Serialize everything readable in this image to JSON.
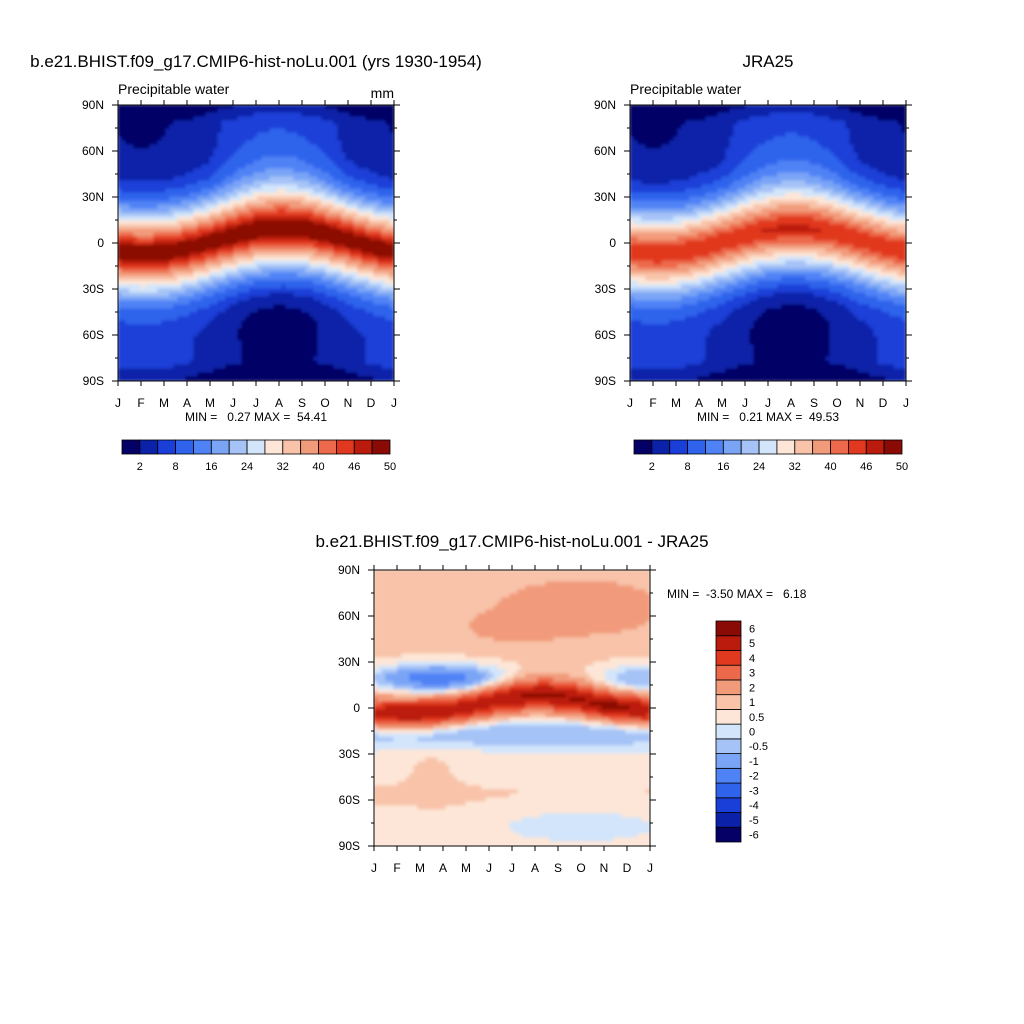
{
  "panels": [
    {
      "title": "b.e21.BHIST.f09_g17.CMIP6-hist-noLu.001 (yrs 1930-1954)",
      "left_label": "Precipitable water",
      "right_label": "mm",
      "stats": "MIN =   0.27 MAX =  54.41"
    },
    {
      "title": "JRA25",
      "left_label": "Precipitable water",
      "right_label": "",
      "stats": "MIN =   0.21 MAX =  49.53"
    },
    {
      "title": "b.e21.BHIST.f09_g17.CMIP6-hist-noLu.001 - JRA25",
      "left_label": "",
      "right_label": "",
      "stats": "MIN =  -3.50 MAX =   6.18"
    }
  ],
  "chart_data": [
    {
      "type": "heatmap",
      "title": "b.e21.BHIST.f09_g17.CMIP6-hist-noLu.001 (yrs 1930-1954)",
      "subtitle": "Precipitable water",
      "units": "mm",
      "x_tick_labels": [
        "J",
        "F",
        "M",
        "A",
        "M",
        "J",
        "J",
        "A",
        "S",
        "O",
        "N",
        "D",
        "J"
      ],
      "y_tick_labels": [
        "90S",
        "60S",
        "30S",
        "0",
        "30N",
        "60N",
        "90N"
      ],
      "y_ticks": [
        -90,
        -60,
        -30,
        0,
        30,
        60,
        90
      ],
      "xlim": [
        0,
        12
      ],
      "ylim": [
        -90,
        90
      ],
      "colorbar_levels": [
        2,
        5,
        8,
        12,
        16,
        20,
        24,
        28,
        32,
        36,
        40,
        43,
        46,
        48,
        50
      ],
      "colorbar_labels": [
        "2",
        "8",
        "16",
        "24",
        "32",
        "40",
        "46",
        "50"
      ],
      "colorbar_colors": [
        "#040066",
        "#0a21a8",
        "#1a3fd8",
        "#2f63ec",
        "#4f82f5",
        "#7aa4f6",
        "#a6c3f7",
        "#d2e5fb",
        "#fde6d7",
        "#f8c3a9",
        "#f29b7b",
        "#ec6a4b",
        "#e1391f",
        "#bb1b0d",
        "#8a0a05"
      ],
      "min": 0.27,
      "max": 54.41
    },
    {
      "type": "heatmap",
      "title": "JRA25",
      "subtitle": "Precipitable water",
      "x_tick_labels": [
        "J",
        "F",
        "M",
        "A",
        "M",
        "J",
        "J",
        "A",
        "S",
        "O",
        "N",
        "D",
        "J"
      ],
      "y_tick_labels": [
        "90S",
        "60S",
        "30S",
        "0",
        "30N",
        "60N",
        "90N"
      ],
      "y_ticks": [
        -90,
        -60,
        -30,
        0,
        30,
        60,
        90
      ],
      "xlim": [
        0,
        12
      ],
      "ylim": [
        -90,
        90
      ],
      "colorbar_levels": [
        2,
        5,
        8,
        12,
        16,
        20,
        24,
        28,
        32,
        36,
        40,
        43,
        46,
        48,
        50
      ],
      "colorbar_labels": [
        "2",
        "8",
        "16",
        "24",
        "32",
        "40",
        "46",
        "50"
      ],
      "colorbar_colors": [
        "#040066",
        "#0a21a8",
        "#1a3fd8",
        "#2f63ec",
        "#4f82f5",
        "#7aa4f6",
        "#a6c3f7",
        "#d2e5fb",
        "#fde6d7",
        "#f8c3a9",
        "#f29b7b",
        "#ec6a4b",
        "#e1391f",
        "#bb1b0d",
        "#8a0a05"
      ],
      "min": 0.21,
      "max": 49.53
    },
    {
      "type": "heatmap",
      "title": "b.e21.BHIST.f09_g17.CMIP6-hist-noLu.001 - JRA25",
      "x_tick_labels": [
        "J",
        "F",
        "M",
        "A",
        "M",
        "J",
        "J",
        "A",
        "S",
        "O",
        "N",
        "D",
        "J"
      ],
      "y_tick_labels": [
        "90S",
        "60S",
        "30S",
        "0",
        "30N",
        "60N",
        "90N"
      ],
      "y_ticks": [
        -90,
        -60,
        -30,
        0,
        30,
        60,
        90
      ],
      "xlim": [
        0,
        12
      ],
      "ylim": [
        -90,
        90
      ],
      "colorbar_levels": [
        -6,
        -5,
        -4,
        -3,
        -2,
        -1,
        -0.5,
        0,
        0.5,
        1,
        2,
        3,
        4,
        5,
        6
      ],
      "colorbar_labels": [
        "-6",
        "-5",
        "-4",
        "-3",
        "-2",
        "-1",
        "-0.5",
        "0",
        "0.5",
        "1",
        "2",
        "3",
        "4",
        "5",
        "6"
      ],
      "colorbar_colors": [
        "#040066",
        "#0a21a8",
        "#1a3fd8",
        "#2f63ec",
        "#4f82f5",
        "#7aa4f6",
        "#a6c3f7",
        "#d2e5fb",
        "#fde6d7",
        "#f8c3a9",
        "#f29b7b",
        "#ec6a4b",
        "#e1391f",
        "#bb1b0d",
        "#8a0a05"
      ],
      "min": -3.5,
      "max": 6.18
    }
  ]
}
